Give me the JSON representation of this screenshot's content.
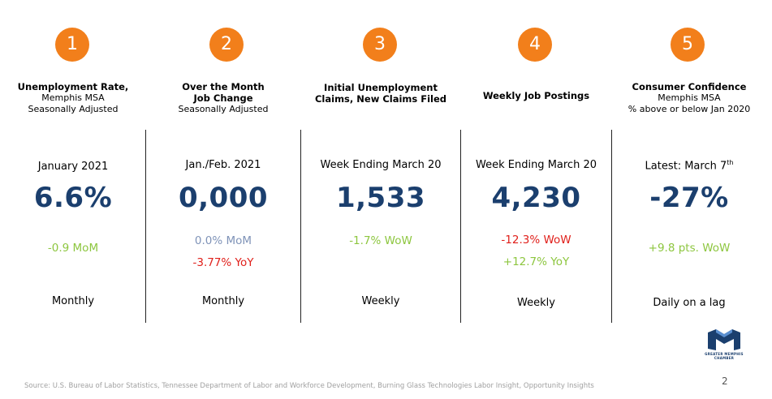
{
  "colors": {
    "accent": "#f27f1b",
    "value": "#1b3f6e",
    "positive": "#8dc63f",
    "negative": "#e0201b",
    "neutral": "#7f93b8"
  },
  "indicators": [
    {
      "number": "1",
      "title_lines": [
        "Unemployment Rate,"
      ],
      "subtitle_lines": [
        "Memphis MSA",
        "Seasonally Adjusted"
      ],
      "period": "January 2021",
      "value": "6.6%",
      "changes": [
        {
          "text": "-0.9 MoM",
          "tone": "positive"
        }
      ],
      "frequency": "Monthly"
    },
    {
      "number": "2",
      "title_lines": [
        "Over the Month",
        "Job Change"
      ],
      "subtitle_lines": [
        "Seasonally Adjusted"
      ],
      "period": "Jan./Feb. 2021",
      "value": "0,000",
      "changes": [
        {
          "text": "0.0% MoM",
          "tone": "neutral"
        },
        {
          "text": "-3.77% YoY",
          "tone": "negative"
        }
      ],
      "frequency": "Monthly"
    },
    {
      "number": "3",
      "title_lines": [
        "Initial Unemployment",
        "Claims, New Claims Filed"
      ],
      "subtitle_lines": [],
      "period": "Week Ending March 20",
      "value": "1,533",
      "changes": [
        {
          "text": "-1.7% WoW",
          "tone": "positive"
        }
      ],
      "frequency": "Weekly"
    },
    {
      "number": "4",
      "title_lines": [
        "Weekly Job Postings"
      ],
      "subtitle_lines": [],
      "period": "Week Ending March 20",
      "value": "4,230",
      "changes": [
        {
          "text": "-12.3% WoW",
          "tone": "negative"
        },
        {
          "text": "+12.7% YoY",
          "tone": "positive"
        }
      ],
      "frequency": "Weekly"
    },
    {
      "number": "5",
      "title_lines": [
        "Consumer Confidence"
      ],
      "subtitle_lines": [
        "Memphis MSA",
        "% above or below Jan 2020"
      ],
      "period": "Latest: March 7",
      "period_sup": "th",
      "value": "-27%",
      "changes": [
        {
          "text": "+9.8 pts. WoW",
          "tone": "positive"
        }
      ],
      "frequency": "Daily on a lag"
    }
  ],
  "footer": {
    "source": "Source: U.S. Bureau of Labor Statistics, Tennessee Department of Labor and Workforce Development, Burning Glass Technologies Labor Insight, Opportunity Insights",
    "page_number": "2"
  },
  "logo": {
    "text": "GREATER MEMPHIS CHAMBER",
    "icon": "chamber-logo-icon"
  }
}
